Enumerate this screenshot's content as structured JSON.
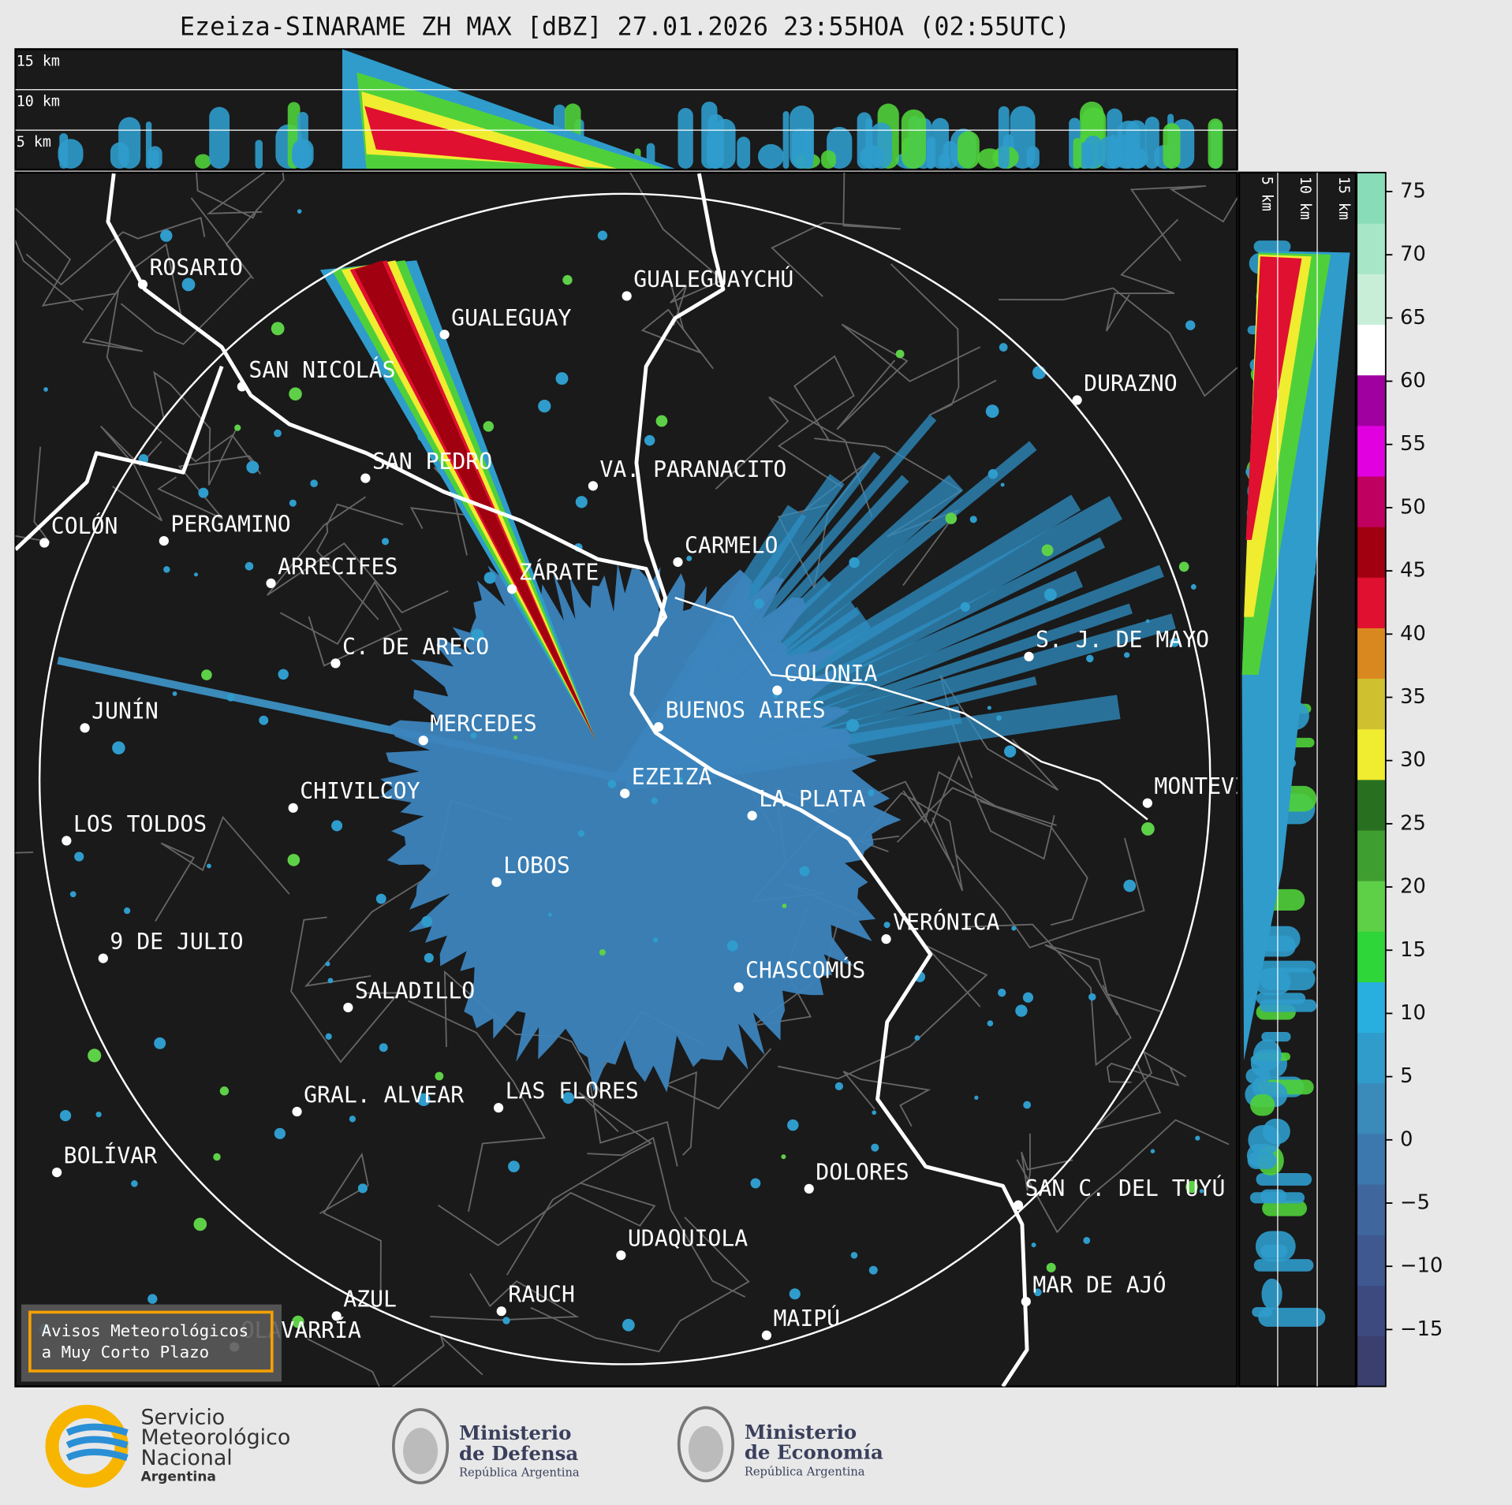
{
  "title": "Ezeiza-SINARAME ZH MAX [dBZ] 27.01.2026 23:55HOA (02:55UTC)",
  "top_panel": {
    "labels": [
      "15 km",
      "10 km",
      "5 km"
    ]
  },
  "side_panel": {
    "labels": [
      "5 km",
      "10 km",
      "15 km"
    ]
  },
  "cities": [
    {
      "name": "ROSARIO"
    },
    {
      "name": "GUALEGUAYCHÚ"
    },
    {
      "name": "GUALEGUAY"
    },
    {
      "name": "SAN NICOLÁS"
    },
    {
      "name": "DURAZNO"
    },
    {
      "name": "SAN PEDRO"
    },
    {
      "name": "VA. PARANACITO"
    },
    {
      "name": "COLÓN"
    },
    {
      "name": "PERGAMINO"
    },
    {
      "name": "CARMELO"
    },
    {
      "name": "ARRECIFES"
    },
    {
      "name": "ZÁRATE"
    },
    {
      "name": "C. DE ARECO"
    },
    {
      "name": "S. J. DE MAYO"
    },
    {
      "name": "COLONIA"
    },
    {
      "name": "BUENOS AIRES"
    },
    {
      "name": "JUNÍN"
    },
    {
      "name": "MERCEDES"
    },
    {
      "name": "EZEIZA"
    },
    {
      "name": "MONTEVIDEO"
    },
    {
      "name": "CHIVILCOY"
    },
    {
      "name": "LA PLATA"
    },
    {
      "name": "LOS TOLDOS"
    },
    {
      "name": "LOBOS"
    },
    {
      "name": "VERÓNICA"
    },
    {
      "name": "9 DE JULIO"
    },
    {
      "name": "CHASCOMÚS"
    },
    {
      "name": "SALADILLO"
    },
    {
      "name": "GRAL. ALVEAR"
    },
    {
      "name": "LAS FLORES"
    },
    {
      "name": "BOLÍVAR"
    },
    {
      "name": "DOLORES"
    },
    {
      "name": "SAN C. DEL TUYÚ"
    },
    {
      "name": "UDAQUIOLA"
    },
    {
      "name": "MAR DE AJÓ"
    },
    {
      "name": "AZUL"
    },
    {
      "name": "RAUCH"
    },
    {
      "name": "OLAVARRÍA"
    },
    {
      "name": "MAIPÚ"
    }
  ],
  "colorbar": {
    "ylim": [
      -19.5,
      76.5
    ],
    "yticks": [
      {
        "value": -15,
        "label": "−15"
      },
      {
        "value": -10,
        "label": "−10"
      },
      {
        "value": -5,
        "label": "−5"
      },
      0,
      5,
      10,
      15,
      20,
      25,
      30,
      35,
      40,
      45,
      50,
      55,
      60,
      65,
      70,
      75
    ],
    "colors": [
      "#3a3f6e",
      "#3d4a80",
      "#3f5890",
      "#3f679e",
      "#3c78ad",
      "#3a8aba",
      "#2f9ccc",
      "#29aee0",
      "#2fd63a",
      "#5ed048",
      "#3f9e30",
      "#287020",
      "#f0ec30",
      "#cfc030",
      "#d98820",
      "#e01030",
      "#a00010",
      "#c00060",
      "#e000e0",
      "#a000a0",
      "#ffffff",
      "#c8eed8",
      "#a8e6c8",
      "#88dcb8"
    ]
  },
  "warning": {
    "lines": [
      "Avisos Meteorológicos",
      "a Muy Corto Plazo"
    ]
  },
  "logos": {
    "smn": [
      "Servicio",
      "Meteorológico",
      "Nacional",
      "Argentina"
    ],
    "defensa": [
      "Ministerio",
      "de Defensa",
      "República Argentina"
    ],
    "economia": [
      "Ministerio",
      "de Economía",
      "República Argentina"
    ]
  }
}
